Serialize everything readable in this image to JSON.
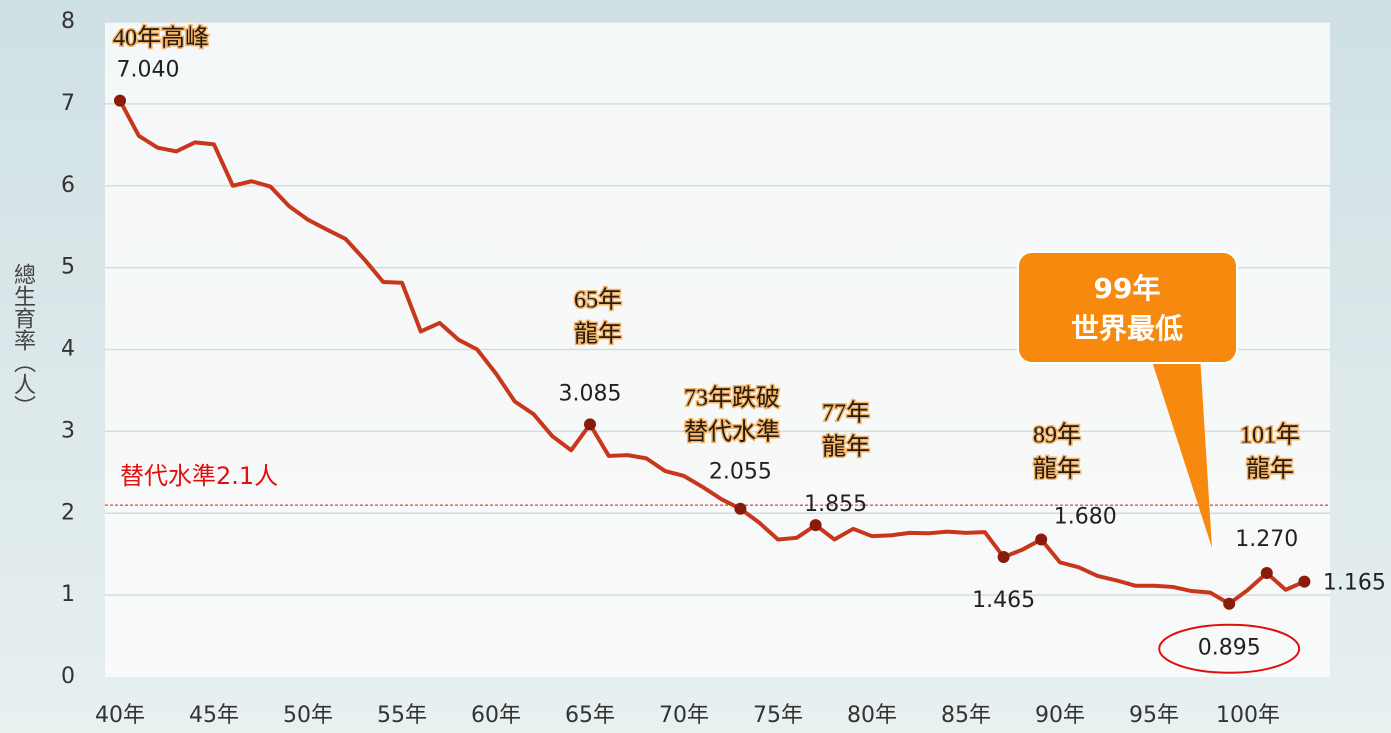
{
  "chart_data": {
    "type": "line",
    "y_axis_title": "總生育率（人）",
    "categories": [
      "40年",
      null,
      null,
      null,
      null,
      "45年",
      null,
      null,
      null,
      null,
      "50年",
      null,
      null,
      null,
      null,
      "55年",
      null,
      null,
      null,
      null,
      "60年",
      null,
      null,
      null,
      null,
      "65年",
      null,
      null,
      null,
      null,
      "70年",
      null,
      null,
      null,
      null,
      "75年",
      null,
      null,
      null,
      null,
      "80年",
      null,
      null,
      null,
      null,
      "85年",
      null,
      null,
      null,
      null,
      "90年",
      null,
      null,
      null,
      null,
      "95年",
      null,
      null,
      null,
      null,
      "100年",
      null,
      null,
      null
    ],
    "series": [
      {
        "name": "總生育率",
        "color": "#c8361c",
        "values": [
          7.04,
          6.61,
          6.465,
          6.42,
          6.53,
          6.505,
          6.0,
          6.055,
          5.99,
          5.75,
          5.585,
          5.465,
          5.35,
          5.1,
          4.825,
          4.815,
          4.22,
          4.325,
          4.12,
          4.0,
          3.705,
          3.365,
          3.21,
          2.94,
          2.77,
          3.085,
          2.7,
          2.71,
          2.67,
          2.515,
          2.455,
          2.32,
          2.17,
          2.055,
          1.885,
          1.68,
          1.7,
          1.855,
          1.68,
          1.81,
          1.72,
          1.73,
          1.76,
          1.755,
          1.775,
          1.76,
          1.77,
          1.465,
          1.555,
          1.68,
          1.4,
          1.34,
          1.235,
          1.18,
          1.115,
          1.115,
          1.1,
          1.05,
          1.03,
          0.895,
          1.065,
          1.27,
          1.065,
          1.165
        ],
        "value_labels": [
          "7.040",
          null,
          null,
          null,
          null,
          null,
          null,
          null,
          null,
          null,
          null,
          null,
          null,
          null,
          null,
          null,
          null,
          null,
          null,
          null,
          null,
          null,
          null,
          null,
          null,
          "3.085",
          null,
          null,
          null,
          null,
          null,
          null,
          null,
          "2.055",
          null,
          null,
          null,
          "1.855",
          null,
          null,
          null,
          null,
          null,
          null,
          null,
          null,
          null,
          "1.465",
          null,
          "1.680",
          null,
          null,
          null,
          null,
          null,
          null,
          null,
          null,
          null,
          "0.895",
          null,
          "1.270",
          null,
          "1.165"
        ]
      }
    ],
    "ylim": [
      0,
      8
    ],
    "yticks": [
      0,
      1,
      2,
      3,
      4,
      5,
      6,
      7,
      8
    ],
    "grid": true,
    "reference": {
      "value": 2.1,
      "label": "替代水準2.1人",
      "color": "#e01010"
    },
    "annotations": [
      {
        "lines": [
          "40年高峰"
        ]
      },
      {
        "lines": [
          "65年",
          "龍年"
        ]
      },
      {
        "lines": [
          "73年跌破",
          "替代水準"
        ]
      },
      {
        "lines": [
          "77年",
          "龍年"
        ]
      },
      {
        "lines": [
          "89年",
          "龍年"
        ]
      },
      {
        "lines": [
          "101年",
          "龍年"
        ]
      }
    ],
    "callout": {
      "lines": [
        "99年",
        "世界最低"
      ],
      "color": "#f7890f"
    }
  }
}
